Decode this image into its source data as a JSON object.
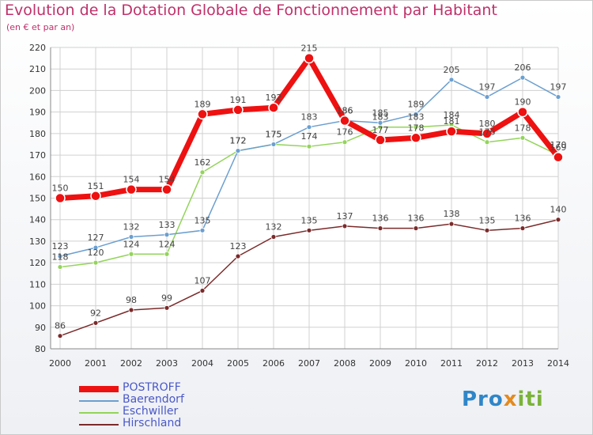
{
  "header": {
    "title": "Evolution de la Dotation Globale de Fonctionnement par Habitant",
    "subtitle": "(en € et par an)"
  },
  "logo": {
    "part1": "Pro",
    "part2": "x",
    "part3": "iti"
  },
  "colors": {
    "POSTROFF": "#ee1111",
    "Baerendorf": "#6b9fd0",
    "Eschwiller": "#93d45a",
    "Hirschland": "#7b2a2a",
    "grid": "#d0d0d0",
    "axis_text": "#333333",
    "legend_text": "#4a58c8"
  },
  "chart_data": {
    "type": "line",
    "title": "Evolution de la Dotation Globale de Fonctionnement par Habitant",
    "subtitle": "(en € et par an)",
    "xlabel": "",
    "ylabel": "",
    "x": [
      2000,
      2001,
      2002,
      2003,
      2004,
      2005,
      2006,
      2007,
      2008,
      2009,
      2010,
      2011,
      2012,
      2013,
      2014
    ],
    "ylim": [
      80,
      220
    ],
    "yticks": [
      80,
      90,
      100,
      110,
      120,
      130,
      140,
      150,
      160,
      170,
      180,
      190,
      200,
      210,
      220
    ],
    "grid": true,
    "legend_position": "bottom-left",
    "series": [
      {
        "name": "POSTROFF",
        "values": [
          150,
          151,
          154,
          154,
          189,
          191,
          192,
          215,
          186,
          177,
          178,
          181,
          180,
          190,
          169
        ]
      },
      {
        "name": "Baerendorf",
        "values": [
          123,
          127,
          132,
          133,
          135,
          172,
          175,
          183,
          186,
          185,
          189,
          205,
          197,
          206,
          197
        ]
      },
      {
        "name": "Eschwiller",
        "values": [
          118,
          120,
          124,
          124,
          162,
          172,
          175,
          174,
          176,
          183,
          183,
          184,
          176,
          178,
          170
        ]
      },
      {
        "name": "Hirschland",
        "values": [
          86,
          92,
          98,
          99,
          107,
          123,
          132,
          135,
          137,
          136,
          136,
          138,
          135,
          136,
          140
        ]
      }
    ]
  }
}
